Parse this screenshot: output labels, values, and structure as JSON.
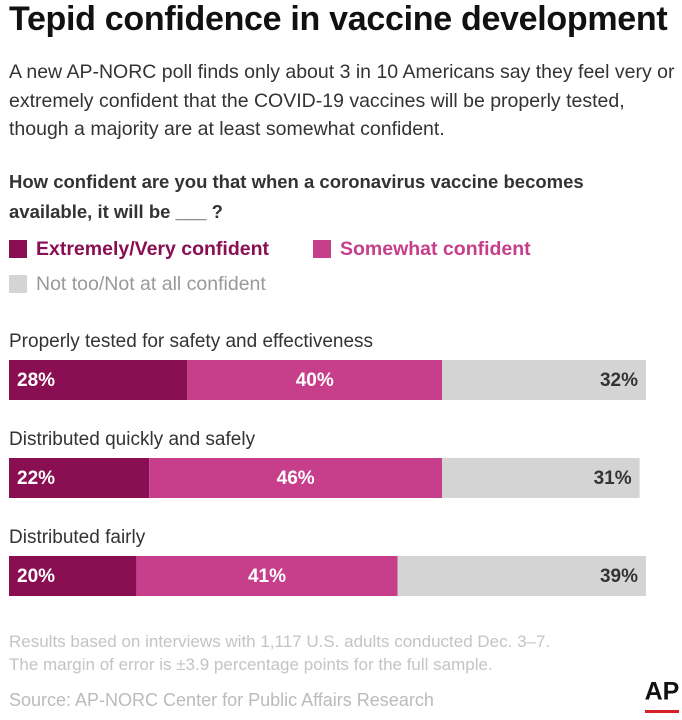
{
  "chart_data": {
    "type": "stacked_bar",
    "title": "Tepid confidence in vaccine development",
    "subtitle": "A new AP-NORC poll finds only about 3 in 10 Americans say they feel very or extremely confident that the COVID-19 vaccines will be properly tested, though a majority are at least somewhat confident.",
    "question": "How confident are you that when a coronavirus vaccine becomes available, it will be ___ ?",
    "categories": [
      "Properly tested for safety and effectiveness",
      "Distributed quickly and safely",
      "Distributed fairly"
    ],
    "series": [
      {
        "name": "Extremely/Very confident",
        "color": "#8a0f52",
        "values": [
          28,
          22,
          20
        ],
        "value_labels": [
          "28%",
          "22%",
          "20%"
        ]
      },
      {
        "name": "Somewhat confident",
        "color": "#c73f8b",
        "values": [
          40,
          46,
          41
        ],
        "value_labels": [
          "40%",
          "46%",
          "41%"
        ]
      },
      {
        "name": "Not too/Not at all confident",
        "color": "#d4d4d4",
        "values": [
          32,
          31,
          39
        ],
        "value_labels": [
          "32%",
          "31%",
          "39%"
        ]
      }
    ],
    "notes": [
      "Results based on interviews with 1,117 U.S. adults conducted Dec. 3–7.",
      "The margin of error is ±3.9 percentage points for the full sample."
    ],
    "source": "Source: AP-NORC Center for Public Affairs Research",
    "logo": "AP"
  }
}
